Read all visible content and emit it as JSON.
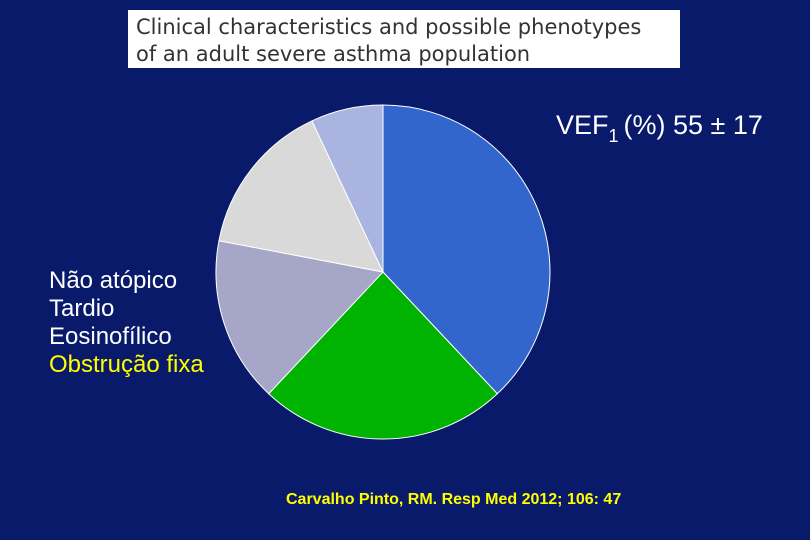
{
  "chart_data": {
    "type": "pie",
    "title_lines": [
      "Clinical characteristics and possible phenotypes",
      "of an adult severe asthma population"
    ],
    "categories": [
      null,
      null,
      null,
      null,
      null
    ],
    "values": [
      38,
      24,
      16,
      15,
      7
    ],
    "colors": [
      "#3366cc",
      "#00b300",
      "#a6a6c8",
      "#d9d9d9",
      "#aab4e0"
    ],
    "annotation": {
      "main": "VEF",
      "subscript": "1",
      "rest": "(%) 55 ± 17"
    },
    "labels": [
      "Não atópico",
      "Tardio",
      "Eosinofílico",
      "Obstrução fixa"
    ],
    "label_colors": [
      "#ffffff",
      "#ffffff",
      "#ffffff",
      "#ffff00"
    ],
    "source": "Carvalho Pinto, RM. Resp Med 2012; 106: 47"
  }
}
